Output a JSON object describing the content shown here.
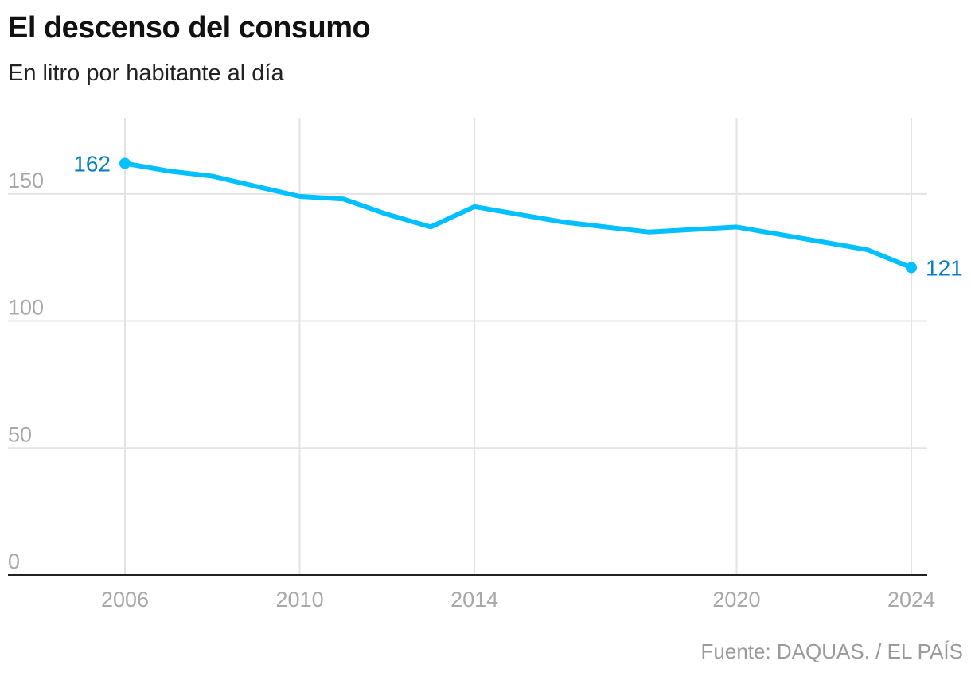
{
  "title": "El descenso del consumo",
  "subtitle": "En litro por habitante al día",
  "source": "Fuente: DAQUAS. / EL PAÍS",
  "colors": {
    "line": "#00c0ff",
    "endpoint_label": "#0a7fc0",
    "grid": "#e3e3e3",
    "tick_label": "#a8a8a8",
    "axis": "#222222"
  },
  "chart_data": {
    "type": "line",
    "title": "El descenso del consumo",
    "subtitle": "En litro por habitante al día",
    "ylim": [
      0,
      180
    ],
    "xlim": [
      2006,
      2024
    ],
    "y_ticks": [
      0,
      50,
      100,
      150
    ],
    "x_ticks": [
      2006,
      2010,
      2014,
      2020,
      2024
    ],
    "grid": true,
    "series": [
      {
        "x": [
          2006,
          2007,
          2008,
          2009,
          2010,
          2011,
          2012,
          2013,
          2014,
          2015,
          2016,
          2017,
          2018,
          2019,
          2020,
          2021,
          2022,
          2023,
          2024
        ],
        "y": [
          162,
          159,
          157,
          153,
          149,
          148,
          142,
          137,
          145,
          142,
          139,
          137,
          135,
          136,
          137,
          134,
          131,
          128,
          121
        ]
      }
    ],
    "annotations": [
      {
        "x": 2006,
        "y": 162,
        "text": "162",
        "position": "left"
      },
      {
        "x": 2024,
        "y": 121,
        "text": "121",
        "position": "right"
      }
    ]
  }
}
